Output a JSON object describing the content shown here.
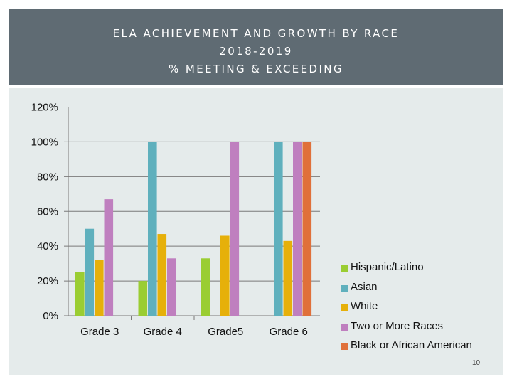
{
  "header": {
    "title_line1": "ELA ACHIEVEMENT AND GROWTH BY RACE",
    "title_line2": "2018-2019",
    "title_line3": "% MEETING & EXCEEDING"
  },
  "chart_data": {
    "type": "bar",
    "title": "ELA ACHIEVEMENT AND GROWTH BY RACE 2018-2019 % MEETING & EXCEEDING",
    "categories": [
      "Grade 3",
      "Grade 4",
      "Grade5",
      "Grade 6"
    ],
    "series": [
      {
        "name": "Hispanic/Latino",
        "color": "#9acd32",
        "values": [
          25,
          20,
          33,
          null
        ]
      },
      {
        "name": "Asian",
        "color": "#5fb0bd",
        "values": [
          50,
          100,
          null,
          100
        ]
      },
      {
        "name": "White",
        "color": "#e6b00a",
        "values": [
          32,
          47,
          46,
          43
        ]
      },
      {
        "name": "Two or More Races",
        "color": "#bf7fbf",
        "values": [
          67,
          33,
          100,
          100
        ]
      },
      {
        "name": "Black or African American",
        "color": "#e0703a",
        "values": [
          null,
          null,
          null,
          100
        ]
      }
    ],
    "ylim": [
      0,
      120
    ],
    "yticks": [
      0,
      20,
      40,
      60,
      80,
      100,
      120
    ],
    "ytick_labels": [
      "0%",
      "20%",
      "40%",
      "60%",
      "80%",
      "100%",
      "120%"
    ],
    "xlabel": "",
    "ylabel": "",
    "grid": true,
    "legend_position": "right"
  },
  "page_number": "10"
}
